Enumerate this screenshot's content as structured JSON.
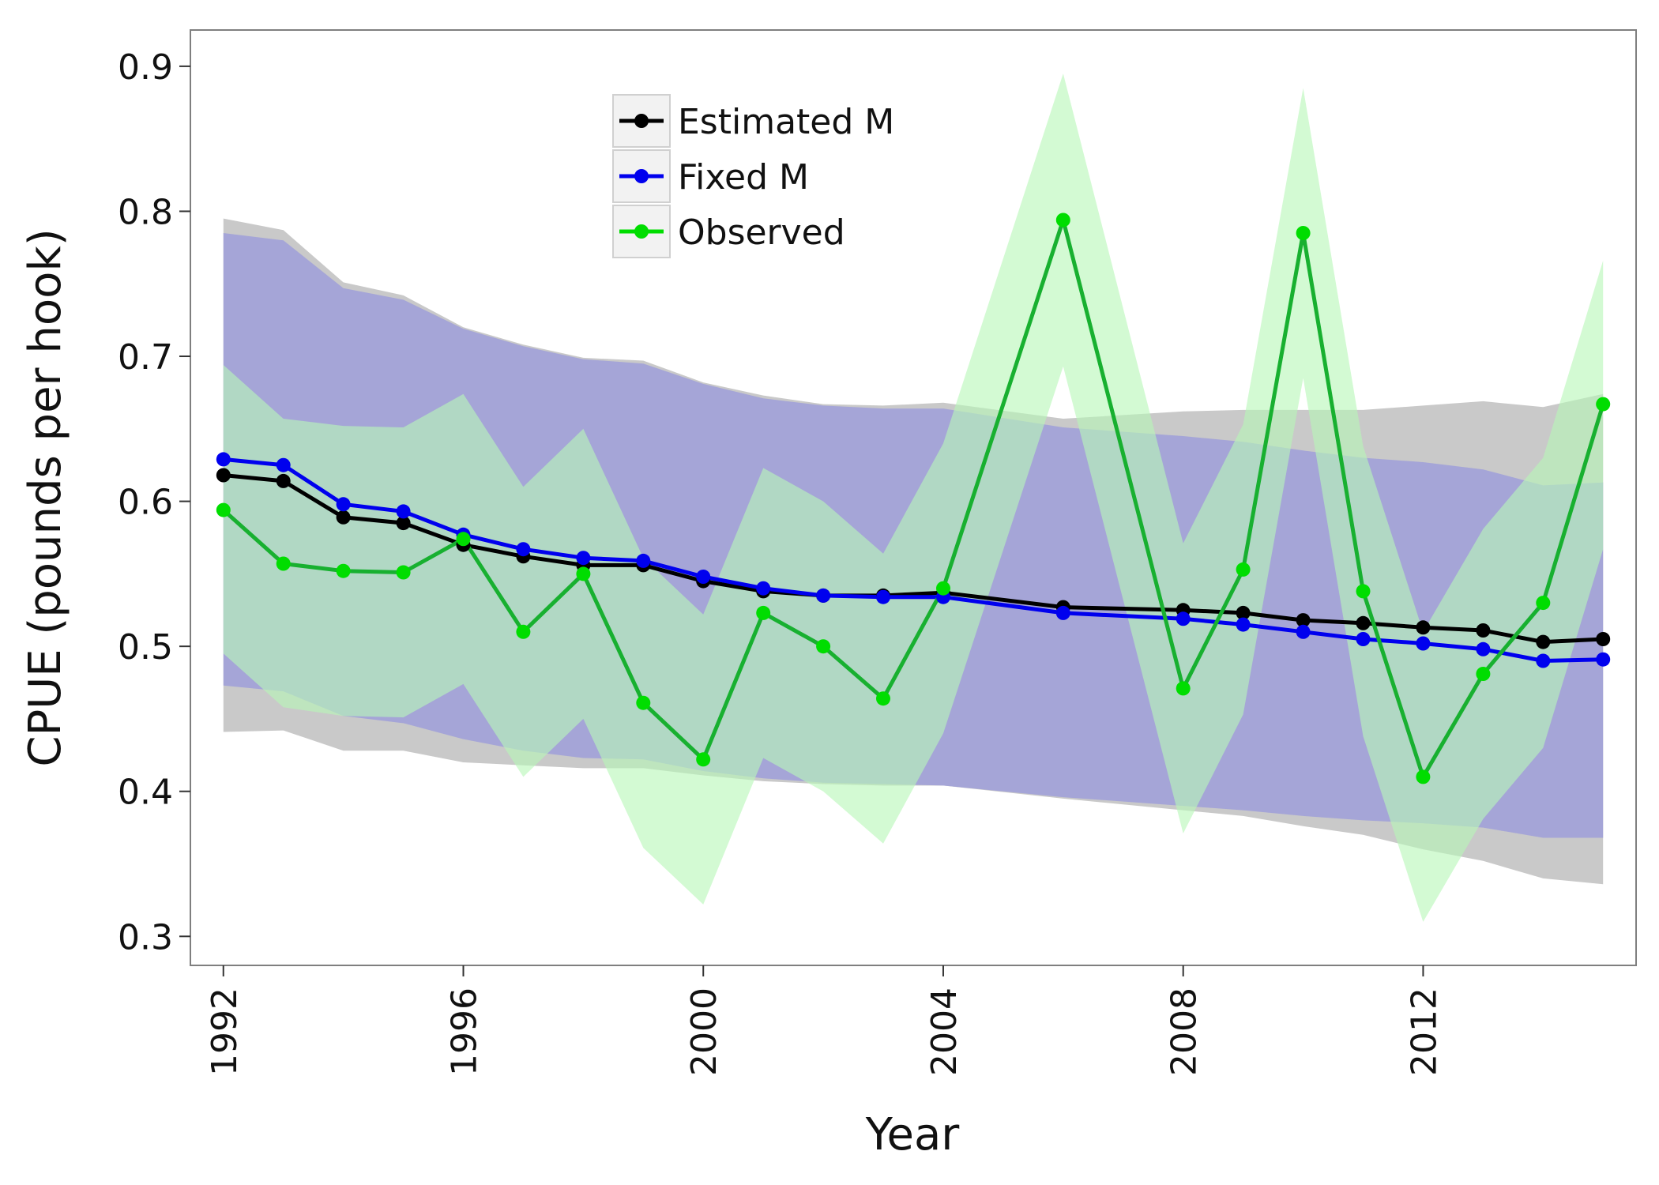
{
  "chart_data": {
    "type": "line",
    "xlabel": "Year",
    "ylabel": "CPUE (pounds per hook)",
    "xlim": [
      1991.45,
      2015.55
    ],
    "ylim": [
      0.28,
      0.925
    ],
    "xticks": [
      1992,
      1996,
      2000,
      2004,
      2008,
      2012
    ],
    "yticks": [
      0.3,
      0.4,
      0.5,
      0.6,
      0.7,
      0.8,
      0.9
    ],
    "ytick_labels": [
      "0.3",
      "0.4",
      "0.5",
      "0.6",
      "0.7",
      "0.8",
      "0.9"
    ],
    "grid": false,
    "legend_position": "top-center",
    "colors": {
      "estimated": "#000000",
      "fixed": "#0000ee",
      "observed": "#00dd00",
      "band_estimated": "#c9c9c9",
      "band_fixed": "#a3a3d8",
      "band_observed": "#b8f7b8",
      "observed_line": "#18b030"
    },
    "bands": [
      {
        "series": "Estimated M",
        "x": [
          1992,
          1993,
          1994,
          1995,
          1996,
          1997,
          1998,
          1999,
          2000,
          2001,
          2002,
          2003,
          2004,
          2006,
          2008,
          2009,
          2010,
          2011,
          2012,
          2013,
          2014,
          2015
        ],
        "lower": [
          0.441,
          0.442,
          0.428,
          0.428,
          0.42,
          0.418,
          0.416,
          0.416,
          0.411,
          0.407,
          0.405,
          0.404,
          0.404,
          0.395,
          0.387,
          0.383,
          0.376,
          0.37,
          0.36,
          0.352,
          0.34,
          0.336
        ],
        "upper": [
          0.795,
          0.787,
          0.751,
          0.742,
          0.72,
          0.708,
          0.699,
          0.697,
          0.682,
          0.673,
          0.667,
          0.666,
          0.668,
          0.657,
          0.662,
          0.663,
          0.663,
          0.663,
          0.666,
          0.669,
          0.665,
          0.674
        ]
      },
      {
        "series": "Fixed M",
        "x": [
          1992,
          1993,
          1994,
          1995,
          1996,
          1997,
          1998,
          1999,
          2000,
          2001,
          2002,
          2003,
          2004,
          2006,
          2008,
          2009,
          2010,
          2011,
          2012,
          2013,
          2014,
          2015
        ],
        "lower": [
          0.473,
          0.469,
          0.452,
          0.447,
          0.436,
          0.428,
          0.423,
          0.422,
          0.414,
          0.409,
          0.406,
          0.405,
          0.404,
          0.396,
          0.39,
          0.387,
          0.383,
          0.38,
          0.378,
          0.375,
          0.368,
          0.368
        ],
        "upper": [
          0.785,
          0.78,
          0.747,
          0.739,
          0.719,
          0.707,
          0.698,
          0.695,
          0.681,
          0.671,
          0.666,
          0.664,
          0.664,
          0.651,
          0.645,
          0.641,
          0.635,
          0.63,
          0.627,
          0.622,
          0.611,
          0.613
        ]
      },
      {
        "series": "Observed",
        "x": [
          1992,
          1993,
          1994,
          1995,
          1996,
          1997,
          1998,
          1999,
          2000,
          2001,
          2002,
          2003,
          2004,
          2006,
          2008,
          2009,
          2010,
          2011,
          2012,
          2013,
          2014,
          2015
        ],
        "lower": [
          0.495,
          0.458,
          0.452,
          0.451,
          0.474,
          0.41,
          0.45,
          0.361,
          0.322,
          0.423,
          0.4,
          0.364,
          0.44,
          0.693,
          0.371,
          0.453,
          0.685,
          0.438,
          0.31,
          0.381,
          0.43,
          0.567
        ],
        "upper": [
          0.694,
          0.657,
          0.652,
          0.651,
          0.674,
          0.61,
          0.65,
          0.561,
          0.522,
          0.623,
          0.6,
          0.564,
          0.64,
          0.895,
          0.571,
          0.653,
          0.885,
          0.638,
          0.51,
          0.581,
          0.63,
          0.766
        ]
      }
    ],
    "series": [
      {
        "name": "Estimated M",
        "x": [
          1992,
          1993,
          1994,
          1995,
          1996,
          1997,
          1998,
          1999,
          2000,
          2001,
          2002,
          2003,
          2004,
          2006,
          2008,
          2009,
          2010,
          2011,
          2012,
          2013,
          2014,
          2015
        ],
        "y": [
          0.618,
          0.614,
          0.589,
          0.585,
          0.57,
          0.562,
          0.556,
          0.556,
          0.545,
          0.538,
          0.535,
          0.535,
          0.537,
          0.527,
          0.525,
          0.523,
          0.518,
          0.516,
          0.513,
          0.511,
          0.503,
          0.505
        ]
      },
      {
        "name": "Fixed M",
        "x": [
          1992,
          1993,
          1994,
          1995,
          1996,
          1997,
          1998,
          1999,
          2000,
          2001,
          2002,
          2003,
          2004,
          2006,
          2008,
          2009,
          2010,
          2011,
          2012,
          2013,
          2014,
          2015
        ],
        "y": [
          0.629,
          0.625,
          0.598,
          0.593,
          0.577,
          0.567,
          0.561,
          0.559,
          0.548,
          0.54,
          0.535,
          0.534,
          0.534,
          0.523,
          0.519,
          0.515,
          0.51,
          0.505,
          0.502,
          0.498,
          0.49,
          0.491
        ]
      },
      {
        "name": "Observed",
        "x": [
          1992,
          1993,
          1994,
          1995,
          1996,
          1997,
          1998,
          1999,
          2000,
          2001,
          2002,
          2003,
          2004,
          2006,
          2008,
          2009,
          2010,
          2011,
          2012,
          2013,
          2014,
          2015
        ],
        "y": [
          0.594,
          0.557,
          0.552,
          0.551,
          0.574,
          0.51,
          0.55,
          0.461,
          0.422,
          0.523,
          0.5,
          0.464,
          0.54,
          0.794,
          0.471,
          0.553,
          0.785,
          0.538,
          0.41,
          0.481,
          0.53,
          0.667
        ]
      }
    ]
  }
}
